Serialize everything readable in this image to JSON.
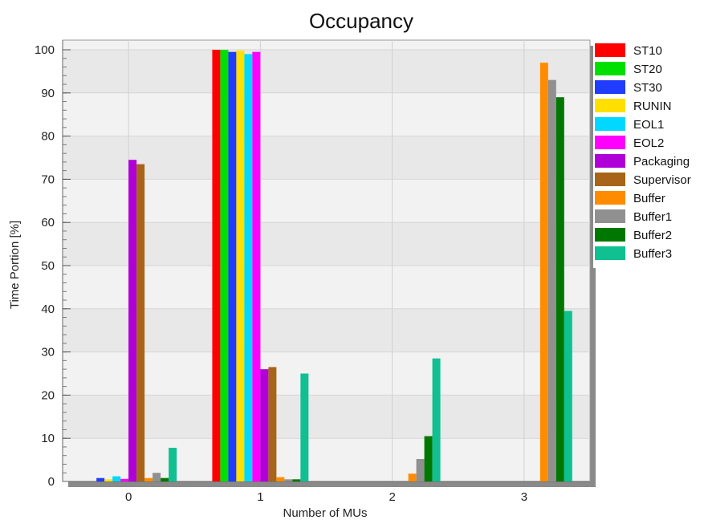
{
  "chart_data": {
    "type": "bar",
    "title": "Occupancy",
    "xlabel": "Number of MUs",
    "ylabel": "Time Portion [%]",
    "ylim": [
      0,
      100
    ],
    "yticks": [
      "0",
      "10",
      "20",
      "30",
      "40",
      "50",
      "60",
      "70",
      "80",
      "90",
      "100"
    ],
    "categories": [
      "0",
      "1",
      "2",
      "3"
    ],
    "grid": true,
    "legend_position": "right",
    "series": [
      {
        "name": "ST10",
        "color": "#ff0000",
        "values": [
          0,
          100,
          0,
          0
        ]
      },
      {
        "name": "ST20",
        "color": "#00e000",
        "values": [
          0,
          100,
          0,
          0
        ]
      },
      {
        "name": "ST30",
        "color": "#1f3cff",
        "values": [
          0.8,
          99.5,
          0,
          0
        ]
      },
      {
        "name": "RUNIN",
        "color": "#ffe000",
        "values": [
          0.5,
          99.8,
          0,
          0
        ]
      },
      {
        "name": "EOL1",
        "color": "#00d8ff",
        "values": [
          1.2,
          99,
          0,
          0
        ]
      },
      {
        "name": "EOL2",
        "color": "#ff00ff",
        "values": [
          0.6,
          99.5,
          0,
          0
        ]
      },
      {
        "name": "Packaging",
        "color": "#b000d8",
        "values": [
          74.5,
          26,
          0,
          0
        ]
      },
      {
        "name": "Supervisor",
        "color": "#a86418",
        "values": [
          73.5,
          26.5,
          0,
          0
        ]
      },
      {
        "name": "Buffer",
        "color": "#ff8c00",
        "values": [
          0.8,
          1,
          1.8,
          97
        ]
      },
      {
        "name": "Buffer1",
        "color": "#909090",
        "values": [
          2,
          0.5,
          5.2,
          93
        ]
      },
      {
        "name": "Buffer2",
        "color": "#007800",
        "values": [
          0.8,
          0.5,
          10.5,
          89
        ]
      },
      {
        "name": "Buffer3",
        "color": "#10c090",
        "values": [
          7.8,
          25,
          28.5,
          39.5
        ]
      }
    ]
  }
}
